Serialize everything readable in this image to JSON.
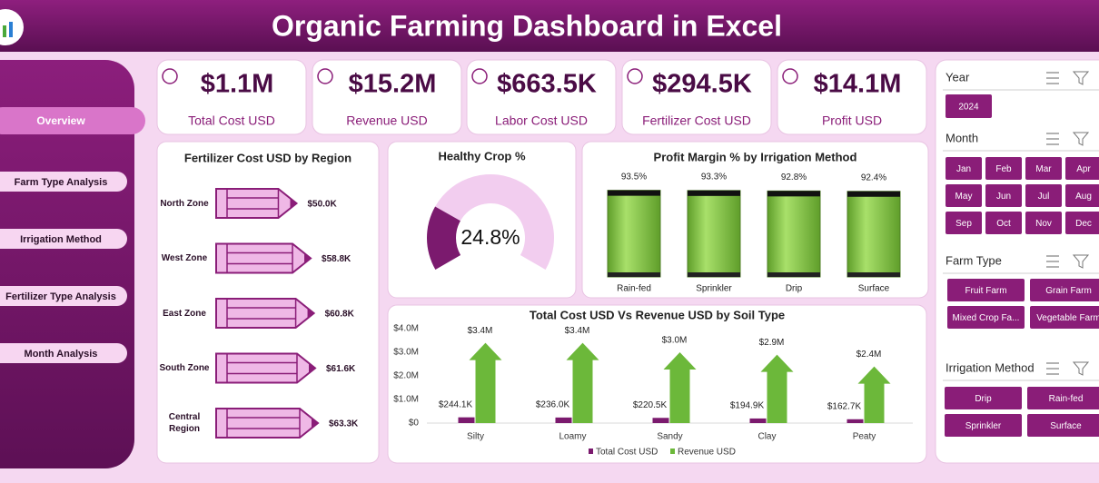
{
  "header": {
    "title": "Organic Farming Dashboard in Excel"
  },
  "nav": [
    "Overview",
    "Farm Type Analysis",
    "Irrigation Method",
    "Fertilizer Type Analysis",
    "Month Analysis"
  ],
  "kpis": [
    {
      "value": "$1.1M",
      "label": "Total Cost USD"
    },
    {
      "value": "$15.2M",
      "label": "Revenue USD"
    },
    {
      "value": "$663.5K",
      "label": "Labor Cost USD"
    },
    {
      "value": "$294.5K",
      "label": "Fertilizer Cost USD"
    },
    {
      "value": "$14.1M",
      "label": "Profit USD"
    }
  ],
  "slicers": [
    {
      "title": "Year",
      "items": [
        "2024"
      ]
    },
    {
      "title": "Month",
      "items": [
        "Jan",
        "Feb",
        "Mar",
        "Apr",
        "May",
        "Jun",
        "Jul",
        "Aug",
        "Sep",
        "Oct",
        "Nov",
        "Dec"
      ]
    },
    {
      "title": "Farm Type",
      "items": [
        "Fruit Farm",
        "Grain Farm",
        "Mixed Crop Fa...",
        "Vegetable Farm"
      ]
    },
    {
      "title": "Irrigation Method",
      "items": [
        "Drip",
        "Rain-fed",
        "Sprinkler",
        "Surface"
      ]
    }
  ],
  "chart_data": [
    {
      "type": "barh",
      "title": "Fertilizer Cost USD by Region",
      "categories": [
        "North Zone",
        "West Zone",
        "East Zone",
        "South Zone",
        "Central Region"
      ],
      "values": [
        50000,
        58800,
        60800,
        61600,
        63300
      ],
      "value_labels": [
        "$50.0K",
        "$58.8K",
        "$60.8K",
        "$61.6K",
        "$63.3K"
      ],
      "color": "#efb8e6"
    },
    {
      "type": "donut",
      "title": "Healthy Crop %",
      "values": [
        24.8
      ],
      "value_labels": [
        "24.8%"
      ],
      "colors": [
        "#7b1a6e",
        "#f2cdef"
      ]
    },
    {
      "type": "bar",
      "title": "Profit Margin % by Irrigation Method",
      "categories": [
        "Rain-fed",
        "Sprinkler",
        "Drip",
        "Surface"
      ],
      "values": [
        93.5,
        93.3,
        92.8,
        92.4
      ],
      "value_labels": [
        "93.5%",
        "93.3%",
        "92.8%",
        "92.4%"
      ],
      "color": "#7fc241",
      "ylim": [
        0,
        100
      ]
    },
    {
      "type": "bar",
      "title": "Total Cost USD Vs Revenue USD by Soil Type",
      "categories": [
        "Silty",
        "Loamy",
        "Sandy",
        "Clay",
        "Peaty"
      ],
      "series": [
        {
          "name": "Total Cost USD",
          "color": "#7b1a6e",
          "values": [
            244100,
            236000,
            220500,
            194900,
            162700
          ],
          "value_labels": [
            "$244.1K",
            "$236.0K",
            "$220.5K",
            "$194.9K",
            "$162.7K"
          ]
        },
        {
          "name": "Revenue USD",
          "color": "#6cb83a",
          "values": [
            3400000,
            3400000,
            3000000,
            2900000,
            2400000
          ],
          "value_labels": [
            "$3.4M",
            "$3.4M",
            "$3.0M",
            "$2.9M",
            "$2.4M"
          ]
        }
      ],
      "ylim": [
        0,
        4000000
      ],
      "yticks": [
        {
          "value": 0,
          "label": "$0"
        },
        {
          "value": 1000000,
          "label": "$1.0M"
        },
        {
          "value": 2000000,
          "label": "$2.0M"
        },
        {
          "value": 3000000,
          "label": "$3.0M"
        },
        {
          "value": 4000000,
          "label": "$4.0M"
        }
      ]
    }
  ]
}
